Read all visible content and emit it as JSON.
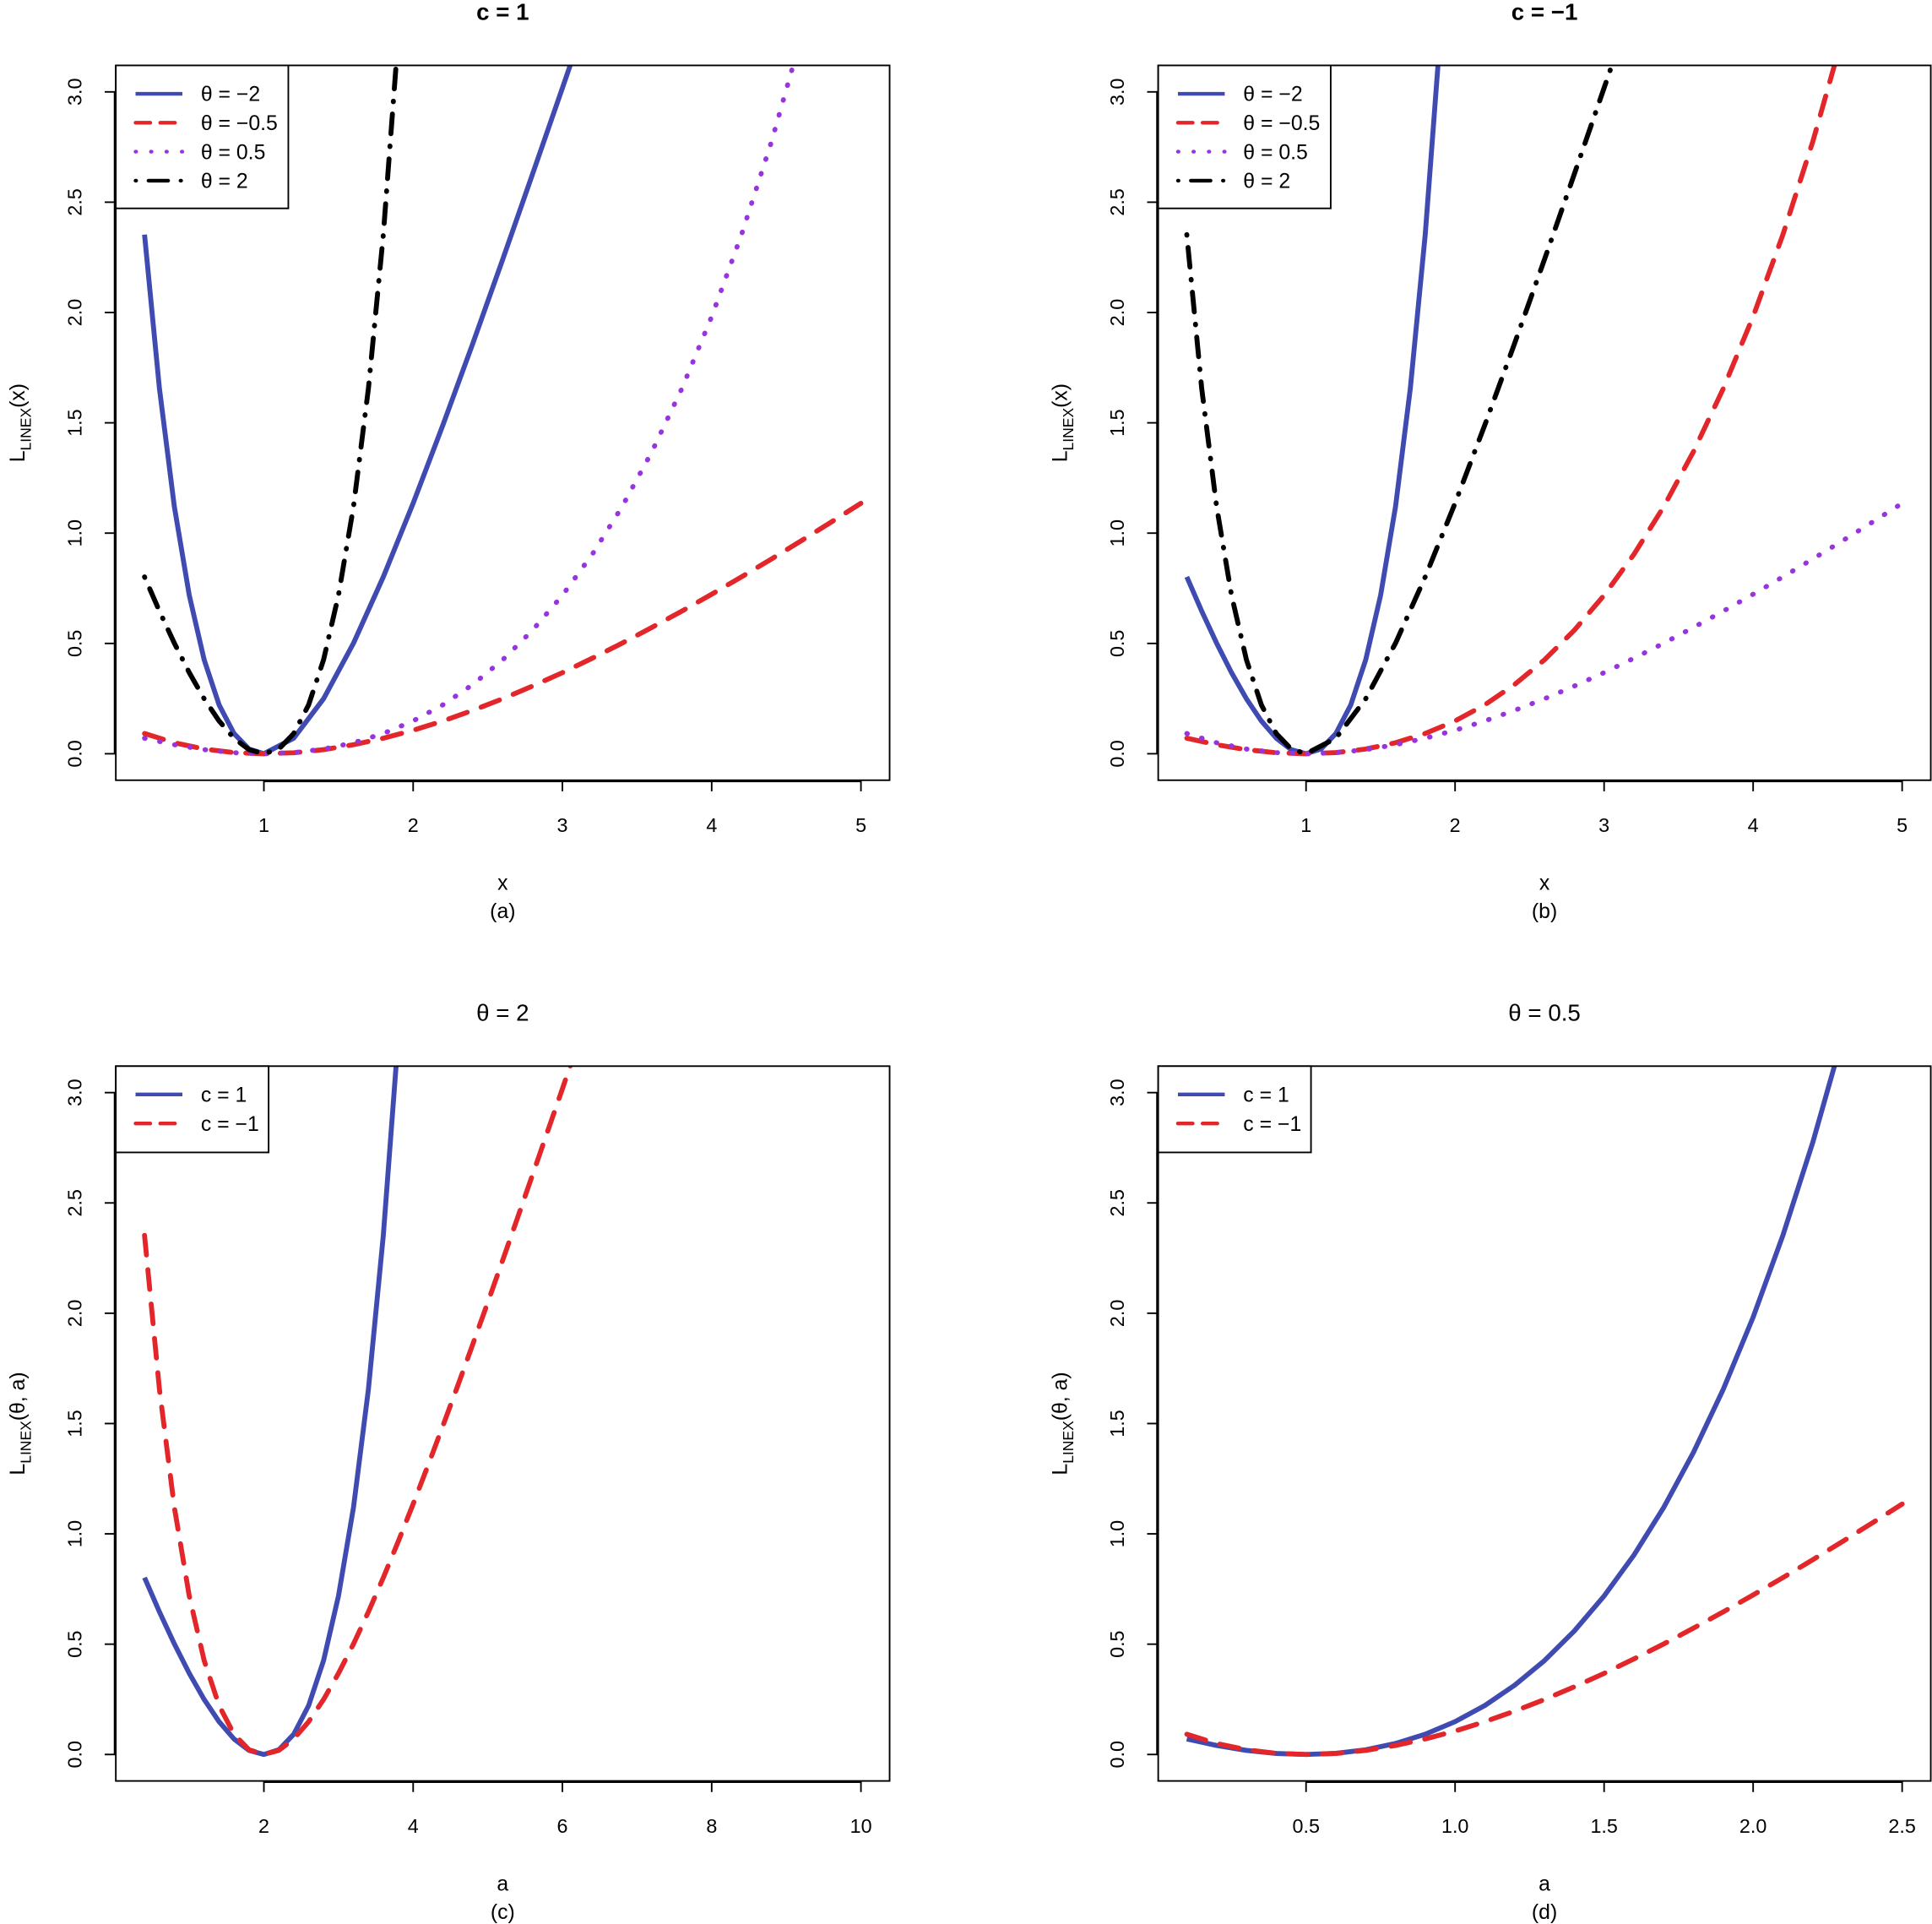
{
  "chart_data": [
    {
      "type": "line",
      "title": "c = 1",
      "title_bold": true,
      "xlabel": "x",
      "caption": "(a)",
      "ylabel": {
        "main": "L",
        "sub": "LINEX",
        "suffix": "(x)"
      },
      "xlim": [
        0.2,
        5
      ],
      "ylim": [
        0,
        3
      ],
      "xticks": [
        1,
        2,
        3,
        4,
        5
      ],
      "xtick_labels": [
        "1",
        "2",
        "3",
        "4",
        "5"
      ],
      "yticks": [
        0,
        0.5,
        1,
        1.5,
        2,
        2.5,
        3
      ],
      "ytick_labels": [
        "0.0",
        "0.5",
        "1.0",
        "1.5",
        "2.0",
        "2.5",
        "3.0"
      ],
      "legend_position": "top-left",
      "series": [
        {
          "name": "θ = −2",
          "color": "#3F4BB0",
          "linetype": "solid",
          "x": [
            0.2,
            0.3,
            0.4,
            0.5,
            0.6,
            0.7,
            0.8,
            0.9,
            1.0,
            1.2,
            1.4,
            1.6,
            1.8,
            2.0,
            2.2,
            2.4,
            2.6,
            2.8,
            3.0,
            3.2
          ],
          "y": [
            2.353,
            1.6552,
            1.1201,
            0.7183,
            0.4255,
            0.2221,
            0.0918,
            0.0214,
            0,
            0.0703,
            0.2493,
            0.5012,
            0.8019,
            1.1353,
            1.4907,
            1.8608,
            2.2408,
            2.6273,
            3.0183,
            3.4123
          ]
        },
        {
          "name": "θ = −0.5",
          "color": "#E3262A",
          "linetype": "dashed",
          "x": [
            0.2,
            0.4,
            0.6,
            0.8,
            1.0,
            1.2,
            1.4,
            1.6,
            1.8,
            2.0,
            2.2,
            2.4,
            2.6,
            2.8,
            3.0,
            3.2,
            3.4,
            3.6,
            3.8,
            4.0,
            4.2,
            4.4,
            4.6,
            4.8,
            5.0
          ],
          "y": [
            0.0918,
            0.0499,
            0.0214,
            0.0052,
            0,
            0.0048,
            0.0187,
            0.0408,
            0.0703,
            0.1065,
            0.1488,
            0.1966,
            0.2493,
            0.3066,
            0.3679,
            0.4329,
            0.5012,
            0.5725,
            0.6466,
            0.7231,
            0.8019,
            0.8827,
            0.9653,
            1.0496,
            1.1353
          ]
        },
        {
          "name": "θ = 0.5",
          "color": "#9933DD",
          "linetype": "dotted",
          "x": [
            0.2,
            0.4,
            0.6,
            0.8,
            1.0,
            1.2,
            1.4,
            1.6,
            1.8,
            2.0,
            2.2,
            2.4,
            2.6,
            2.8,
            3.0,
            3.2,
            3.4,
            3.6,
            3.8,
            4.0,
            4.2,
            4.4,
            4.6
          ],
          "y": [
            0.0703,
            0.0408,
            0.0187,
            0.0048,
            0,
            0.0052,
            0.0214,
            0.0499,
            0.0918,
            0.1487,
            0.2221,
            0.3138,
            0.4255,
            0.5596,
            0.7183,
            0.9042,
            1.1201,
            1.3693,
            1.6552,
            1.9817,
            2.353,
            2.7739,
            3.2496
          ]
        },
        {
          "name": "θ = 2",
          "color": "#000000",
          "linetype": "dotdash",
          "x": [
            0.2,
            0.3,
            0.4,
            0.5,
            0.6,
            0.7,
            0.8,
            0.9,
            1.0,
            1.1,
            1.2,
            1.3,
            1.4,
            1.5,
            1.6,
            1.7,
            1.8,
            1.9
          ],
          "y": [
            0.8019,
            0.6466,
            0.5012,
            0.3679,
            0.2493,
            0.1488,
            0.0703,
            0.0187,
            0,
            0.0214,
            0.0918,
            0.2221,
            0.4255,
            0.7183,
            1.1201,
            1.6552,
            2.353,
            3.2496
          ]
        }
      ]
    },
    {
      "type": "line",
      "title": "c = −1",
      "title_bold": true,
      "xlabel": "x",
      "caption": "(b)",
      "ylabel": {
        "main": "L",
        "sub": "LINEX",
        "suffix": "(x)"
      },
      "xlim": [
        0.2,
        5
      ],
      "ylim": [
        0,
        3
      ],
      "xticks": [
        1,
        2,
        3,
        4,
        5
      ],
      "xtick_labels": [
        "1",
        "2",
        "3",
        "4",
        "5"
      ],
      "yticks": [
        0,
        0.5,
        1,
        1.5,
        2,
        2.5,
        3
      ],
      "ytick_labels": [
        "0.0",
        "0.5",
        "1.0",
        "1.5",
        "2.0",
        "2.5",
        "3.0"
      ],
      "legend_position": "top-left",
      "series": [
        {
          "name": "θ = −2",
          "color": "#3F4BB0",
          "linetype": "solid",
          "x": [
            0.2,
            0.3,
            0.4,
            0.5,
            0.6,
            0.7,
            0.8,
            0.9,
            1.0,
            1.1,
            1.2,
            1.3,
            1.4,
            1.5,
            1.6,
            1.7,
            1.8,
            1.9
          ],
          "y": [
            0.8019,
            0.6466,
            0.5012,
            0.3679,
            0.2493,
            0.1488,
            0.0703,
            0.0187,
            0,
            0.0214,
            0.0918,
            0.2221,
            0.4255,
            0.7183,
            1.1201,
            1.6552,
            2.353,
            3.2496
          ]
        },
        {
          "name": "θ = −0.5",
          "color": "#E3262A",
          "linetype": "dashed",
          "x": [
            0.2,
            0.4,
            0.6,
            0.8,
            1.0,
            1.2,
            1.4,
            1.6,
            1.8,
            2.0,
            2.2,
            2.4,
            2.6,
            2.8,
            3.0,
            3.2,
            3.4,
            3.6,
            3.8,
            4.0,
            4.2,
            4.4,
            4.6
          ],
          "y": [
            0.0703,
            0.0408,
            0.0187,
            0.0048,
            0,
            0.0052,
            0.0214,
            0.0499,
            0.0918,
            0.1487,
            0.2221,
            0.3138,
            0.4255,
            0.5596,
            0.7183,
            0.9042,
            1.1201,
            1.3693,
            1.6552,
            1.9817,
            2.353,
            2.7739,
            3.2496
          ]
        },
        {
          "name": "θ = 0.5",
          "color": "#9933DD",
          "linetype": "dotted",
          "x": [
            0.2,
            0.4,
            0.6,
            0.8,
            1.0,
            1.2,
            1.4,
            1.6,
            1.8,
            2.0,
            2.2,
            2.4,
            2.6,
            2.8,
            3.0,
            3.2,
            3.4,
            3.6,
            3.8,
            4.0,
            4.2,
            4.4,
            4.6,
            4.8,
            5.0
          ],
          "y": [
            0.0918,
            0.0499,
            0.0214,
            0.0052,
            0,
            0.0048,
            0.0187,
            0.0408,
            0.0703,
            0.1065,
            0.1488,
            0.1966,
            0.2493,
            0.3066,
            0.3679,
            0.4329,
            0.5012,
            0.5725,
            0.6466,
            0.7231,
            0.8019,
            0.8827,
            0.9653,
            1.0496,
            1.1353
          ]
        },
        {
          "name": "θ = 2",
          "color": "#000000",
          "linetype": "dotdash",
          "x": [
            0.2,
            0.3,
            0.4,
            0.5,
            0.6,
            0.7,
            0.8,
            0.9,
            1.0,
            1.2,
            1.4,
            1.6,
            1.8,
            2.0,
            2.2,
            2.4,
            2.6,
            2.8,
            3.0,
            3.2
          ],
          "y": [
            2.353,
            1.6552,
            1.1201,
            0.7183,
            0.4255,
            0.2221,
            0.0918,
            0.0214,
            0,
            0.0703,
            0.2493,
            0.5012,
            0.8019,
            1.1353,
            1.4907,
            1.8608,
            2.2408,
            2.6273,
            3.0183,
            3.4123
          ]
        }
      ]
    },
    {
      "type": "line",
      "title": "θ = 2",
      "title_bold": false,
      "xlabel": "a",
      "caption": "(c)",
      "ylabel": {
        "main": "L",
        "sub": "LINEX",
        "suffix": "(θ, a)"
      },
      "xlim": [
        0.4,
        10
      ],
      "ylim": [
        0,
        3
      ],
      "xticks": [
        2,
        4,
        6,
        8,
        10
      ],
      "xtick_labels": [
        "2",
        "4",
        "6",
        "8",
        "10"
      ],
      "yticks": [
        0,
        0.5,
        1,
        1.5,
        2,
        2.5,
        3
      ],
      "ytick_labels": [
        "0.0",
        "0.5",
        "1.0",
        "1.5",
        "2.0",
        "2.5",
        "3.0"
      ],
      "legend_position": "top-left",
      "series": [
        {
          "name": "c = 1",
          "color": "#3F4BB0",
          "linetype": "solid",
          "x": [
            0.4,
            0.6,
            0.8,
            1.0,
            1.2,
            1.4,
            1.6,
            1.8,
            2.0,
            2.2,
            2.4,
            2.6,
            2.8,
            3.0,
            3.2,
            3.4,
            3.6,
            3.8
          ],
          "y": [
            0.8019,
            0.6466,
            0.5012,
            0.3679,
            0.2493,
            0.1488,
            0.0703,
            0.0187,
            0,
            0.0214,
            0.0918,
            0.2221,
            0.4255,
            0.7183,
            1.1201,
            1.6552,
            2.353,
            3.2496
          ]
        },
        {
          "name": "c = −1",
          "color": "#E3262A",
          "linetype": "dashed",
          "x": [
            0.4,
            0.6,
            0.8,
            1.0,
            1.2,
            1.4,
            1.6,
            1.8,
            2.0,
            2.2,
            2.4,
            2.6,
            2.8,
            3.0,
            3.2,
            3.4,
            3.6,
            3.8,
            4.0,
            4.2,
            4.4,
            4.6,
            4.8,
            5.0,
            5.2,
            5.4,
            5.6,
            5.8,
            6.0,
            6.2
          ],
          "y": [
            2.353,
            1.6552,
            1.1201,
            0.7183,
            0.4255,
            0.2221,
            0.0918,
            0.0214,
            0,
            0.0187,
            0.0703,
            0.1488,
            0.2493,
            0.3679,
            0.5012,
            0.6466,
            0.8019,
            0.9653,
            1.1353,
            1.3108,
            1.4907,
            1.6743,
            1.8608,
            2.0498,
            2.2408,
            2.4334,
            2.6273,
            2.8224,
            3.0183,
            3.215
          ]
        }
      ]
    },
    {
      "type": "line",
      "title": "θ = 0.5",
      "title_bold": false,
      "xlabel": "a",
      "caption": "(d)",
      "ylabel": {
        "main": "L",
        "sub": "LINEX",
        "suffix": "(θ, a)"
      },
      "xlim": [
        0.1,
        2.5
      ],
      "ylim": [
        0,
        3
      ],
      "xticks": [
        0.5,
        1.0,
        1.5,
        2.0,
        2.5
      ],
      "xtick_labels": [
        "0.5",
        "1.0",
        "1.5",
        "2.0",
        "2.5"
      ],
      "yticks": [
        0,
        0.5,
        1,
        1.5,
        2,
        2.5,
        3
      ],
      "ytick_labels": [
        "0.0",
        "0.5",
        "1.0",
        "1.5",
        "2.0",
        "2.5",
        "3.0"
      ],
      "legend_position": "top-left",
      "series": [
        {
          "name": "c = 1",
          "color": "#3F4BB0",
          "linetype": "solid",
          "x": [
            0.1,
            0.2,
            0.3,
            0.4,
            0.5,
            0.6,
            0.7,
            0.8,
            0.9,
            1.0,
            1.1,
            1.2,
            1.3,
            1.4,
            1.5,
            1.6,
            1.7,
            1.8,
            1.9,
            2.0,
            2.1,
            2.2,
            2.3
          ],
          "y": [
            0.0703,
            0.0408,
            0.0187,
            0.0048,
            0,
            0.0052,
            0.0214,
            0.0499,
            0.0918,
            0.1487,
            0.2221,
            0.3138,
            0.4255,
            0.5596,
            0.7183,
            0.9042,
            1.1201,
            1.3693,
            1.6552,
            1.9817,
            2.353,
            2.7739,
            3.2496
          ]
        },
        {
          "name": "c = −1",
          "color": "#E3262A",
          "linetype": "dashed",
          "x": [
            0.1,
            0.2,
            0.3,
            0.4,
            0.5,
            0.6,
            0.7,
            0.8,
            0.9,
            1.0,
            1.1,
            1.2,
            1.3,
            1.4,
            1.5,
            1.6,
            1.7,
            1.8,
            1.9,
            2.0,
            2.1,
            2.2,
            2.3,
            2.4,
            2.5
          ],
          "y": [
            0.0918,
            0.0499,
            0.0214,
            0.0052,
            0,
            0.0048,
            0.0187,
            0.0408,
            0.0703,
            0.1065,
            0.1488,
            0.1966,
            0.2493,
            0.3066,
            0.3679,
            0.4329,
            0.5012,
            0.5725,
            0.6466,
            0.7231,
            0.8019,
            0.8827,
            0.9653,
            1.0496,
            1.1353
          ]
        }
      ]
    }
  ]
}
